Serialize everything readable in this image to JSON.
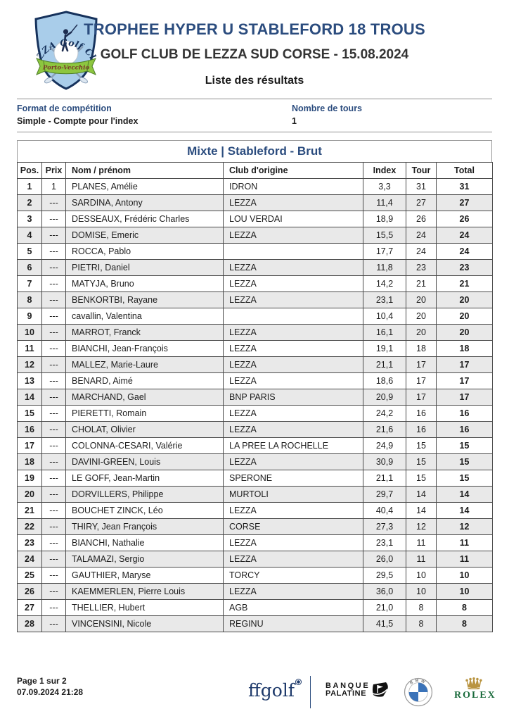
{
  "header": {
    "title": "TROPHEE HYPER U STABLEFORD 18 TROUS",
    "subtitle": "GOLF CLUB DE LEZZA SUD CORSE - 15.08.2024",
    "list_label": "Liste des résultats",
    "logo": {
      "arc_text": "LEZZA Golf Club",
      "banner_text": "Porto-Vecchio"
    }
  },
  "info": {
    "format_label": "Format de compétition",
    "format_value": "Simple - Compte pour l'index",
    "rounds_label": "Nombre de tours",
    "rounds_value": "1"
  },
  "table": {
    "title": "Mixte | Stableford - Brut",
    "columns": [
      "Pos.",
      "Prix",
      "Nom / prénom",
      "Club d'origine",
      "Index",
      "Tour",
      "Total"
    ],
    "rows": [
      [
        "1",
        "1",
        "PLANES, Amélie",
        "IDRON",
        "3,3",
        "31",
        "31"
      ],
      [
        "2",
        "---",
        "SARDINA, Antony",
        "LEZZA",
        "11,4",
        "27",
        "27"
      ],
      [
        "3",
        "---",
        "DESSEAUX, Frédéric Charles",
        "LOU VERDAI",
        "18,9",
        "26",
        "26"
      ],
      [
        "4",
        "---",
        "DOMISE, Emeric",
        "LEZZA",
        "15,5",
        "24",
        "24"
      ],
      [
        "5",
        "---",
        "ROCCA, Pablo",
        "",
        "17,7",
        "24",
        "24"
      ],
      [
        "6",
        "---",
        "PIETRI, Daniel",
        "LEZZA",
        "11,8",
        "23",
        "23"
      ],
      [
        "7",
        "---",
        "MATYJA, Bruno",
        "LEZZA",
        "14,2",
        "21",
        "21"
      ],
      [
        "8",
        "---",
        "BENKORTBI, Rayane",
        "LEZZA",
        "23,1",
        "20",
        "20"
      ],
      [
        "9",
        "---",
        "cavallin, Valentina",
        "",
        "10,4",
        "20",
        "20"
      ],
      [
        "10",
        "---",
        "MARROT, Franck",
        "LEZZA",
        "16,1",
        "20",
        "20"
      ],
      [
        "11",
        "---",
        "BIANCHI, Jean-François",
        "LEZZA",
        "19,1",
        "18",
        "18"
      ],
      [
        "12",
        "---",
        "MALLEZ, Marie-Laure",
        "LEZZA",
        "21,1",
        "17",
        "17"
      ],
      [
        "13",
        "---",
        "BENARD, Aimé",
        "LEZZA",
        "18,6",
        "17",
        "17"
      ],
      [
        "14",
        "---",
        "MARCHAND, Gael",
        "BNP PARIS",
        "20,9",
        "17",
        "17"
      ],
      [
        "15",
        "---",
        "PIERETTI, Romain",
        "LEZZA",
        "24,2",
        "16",
        "16"
      ],
      [
        "16",
        "---",
        "CHOLAT, Olivier",
        "LEZZA",
        "21,6",
        "16",
        "16"
      ],
      [
        "17",
        "---",
        "COLONNA-CESARI, Valérie",
        "LA PREE LA ROCHELLE",
        "24,9",
        "15",
        "15"
      ],
      [
        "18",
        "---",
        "DAVINI-GREEN, Louis",
        "LEZZA",
        "30,9",
        "15",
        "15"
      ],
      [
        "19",
        "---",
        "LE GOFF, Jean-Martin",
        "SPERONE",
        "21,1",
        "15",
        "15"
      ],
      [
        "20",
        "---",
        "DORVILLERS, Philippe",
        "MURTOLI",
        "29,7",
        "14",
        "14"
      ],
      [
        "21",
        "---",
        "BOUCHET ZINCK, Léo",
        "LEZZA",
        "40,4",
        "14",
        "14"
      ],
      [
        "22",
        "---",
        "THIRY, Jean François",
        "CORSE",
        "27,3",
        "12",
        "12"
      ],
      [
        "23",
        "---",
        "BIANCHI, Nathalie",
        "LEZZA",
        "23,1",
        "11",
        "11"
      ],
      [
        "24",
        "---",
        "TALAMAZI, Sergio",
        "LEZZA",
        "26,0",
        "11",
        "11"
      ],
      [
        "25",
        "---",
        "GAUTHIER, Maryse",
        "TORCY",
        "29,5",
        "10",
        "10"
      ],
      [
        "26",
        "---",
        "KAEMMERLEN, Pierre Louis",
        "LEZZA",
        "36,0",
        "10",
        "10"
      ],
      [
        "27",
        "---",
        "THELLIER, Hubert",
        "AGB",
        "21,0",
        "8",
        "8"
      ],
      [
        "28",
        "---",
        "VINCENSINI, Nicole",
        "REGINU",
        "41,5",
        "8",
        "8"
      ]
    ]
  },
  "footer": {
    "page_label": "Page 1 sur 2",
    "timestamp": "07.09.2024 21:28",
    "sponsors": {
      "ffgolf": "ffgolf",
      "banque_line1": "BANQUE",
      "banque_line2": "PALATINE",
      "bmw_letters": "BMW",
      "rolex": "ROLEX"
    }
  },
  "colors": {
    "accent_navy": "#2b4c7e",
    "text_dark": "#1d1d1d",
    "row_alt": "#e9e9e9",
    "table_border": "#4a4a4a",
    "rolex_green": "#1a6b3c",
    "rolex_gold": "#b99441",
    "bmw_blue": "#3b73b9",
    "ribbon_green": "#8dc63f"
  }
}
